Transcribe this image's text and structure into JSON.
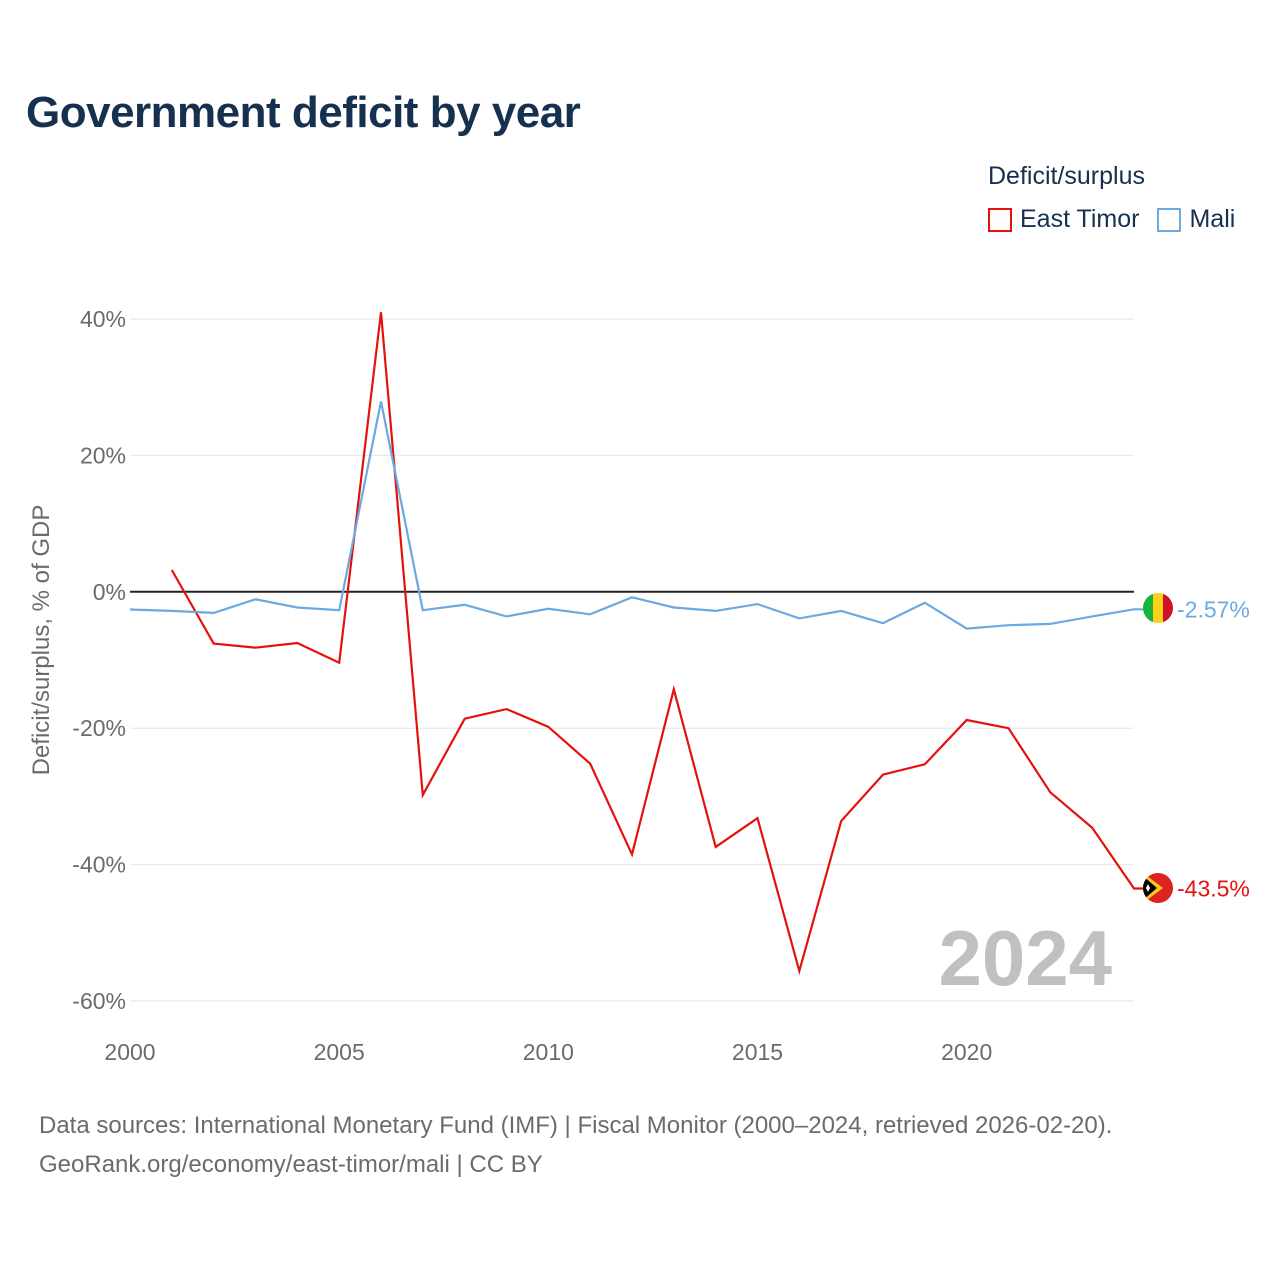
{
  "title": "Government deficit by year",
  "legend": {
    "title": "Deficit/surplus",
    "items": [
      {
        "label": "East Timor",
        "color": "#e3120b"
      },
      {
        "label": "Mali",
        "color": "#6aa9e2"
      }
    ]
  },
  "footer": {
    "line1": "Data sources: International Monetary Fund (IMF) | Fiscal Monitor (2000–2024, retrieved 2026-02-20).",
    "line2": "GeoRank.org/economy/east-timor/mali | CC BY"
  },
  "chart_data": {
    "type": "line",
    "title": "Government deficit by year",
    "xlabel": "",
    "ylabel": "Deficit/surplus, % of GDP",
    "xlim": [
      2000,
      2024
    ],
    "ylim": [
      -60,
      40
    ],
    "yticks": [
      40,
      20,
      0,
      -20,
      -40,
      -60
    ],
    "ytick_labels": [
      "40%",
      "20%",
      "0%",
      "-20%",
      "-40%",
      "-60%"
    ],
    "xticks": [
      2000,
      2005,
      2010,
      2015,
      2020
    ],
    "xtick_labels": [
      "2000",
      "2005",
      "2010",
      "2015",
      "2020"
    ],
    "current_year": "2024",
    "series": [
      {
        "name": "East Timor",
        "color": "#e3120b",
        "end_label": "-43.5%",
        "x": [
          2001,
          2002,
          2003,
          2004,
          2005,
          2006,
          2007,
          2008,
          2009,
          2010,
          2011,
          2012,
          2013,
          2014,
          2015,
          2016,
          2017,
          2018,
          2019,
          2020,
          2021,
          2022,
          2023,
          2024
        ],
        "values": [
          3.2,
          -7.6,
          -8.2,
          -7.5,
          -10.4,
          41.0,
          -29.8,
          -18.6,
          -17.2,
          -19.8,
          -25.2,
          -38.5,
          -14.3,
          -37.4,
          -33.2,
          -55.6,
          -33.6,
          -26.8,
          -25.3,
          -18.8,
          -20.0,
          -29.4,
          -34.6,
          -43.5
        ]
      },
      {
        "name": "Mali",
        "color": "#6aa9e2",
        "end_label": "-2.57%",
        "x": [
          2000,
          2001,
          2002,
          2003,
          2004,
          2005,
          2006,
          2007,
          2008,
          2009,
          2010,
          2011,
          2012,
          2013,
          2014,
          2015,
          2016,
          2017,
          2018,
          2019,
          2020,
          2021,
          2022,
          2023,
          2024
        ],
        "values": [
          -2.6,
          -2.8,
          -3.1,
          -1.1,
          -2.3,
          -2.7,
          27.9,
          -2.7,
          -1.9,
          -3.6,
          -2.5,
          -3.3,
          -0.8,
          -2.3,
          -2.8,
          -1.8,
          -3.9,
          -2.8,
          -4.6,
          -1.6,
          -5.4,
          -4.9,
          -4.7,
          -3.6,
          -2.57
        ]
      }
    ]
  }
}
